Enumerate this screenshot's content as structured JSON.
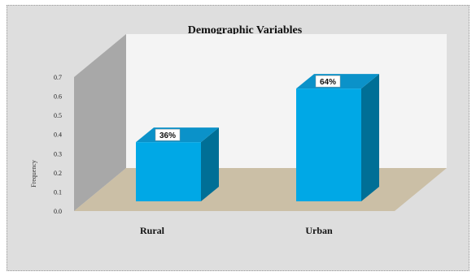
{
  "chart_data": {
    "type": "bar",
    "title": "Demographic Variables",
    "ylabel": "Frequency",
    "xlabel": "",
    "categories": [
      "Rural",
      "Urban"
    ],
    "values": [
      0.36,
      0.64
    ],
    "data_labels": [
      "36%",
      "64%"
    ],
    "y_ticks": [
      "0.0",
      "0.1",
      "0.2",
      "0.3",
      "0.4",
      "0.5",
      "0.6",
      "0.7"
    ],
    "ylim": [
      0,
      0.7
    ],
    "grid": false,
    "legend": "none",
    "three_d": true
  },
  "colors": {
    "bar_front": "#00a8e6",
    "bar_top": "#0b92c9",
    "bar_side": "#006f96",
    "floor": "#cbbfa6",
    "left_wall": "#a8a8a8",
    "back_wall": "#f4f4f4",
    "frame_bg": "#dedede"
  }
}
